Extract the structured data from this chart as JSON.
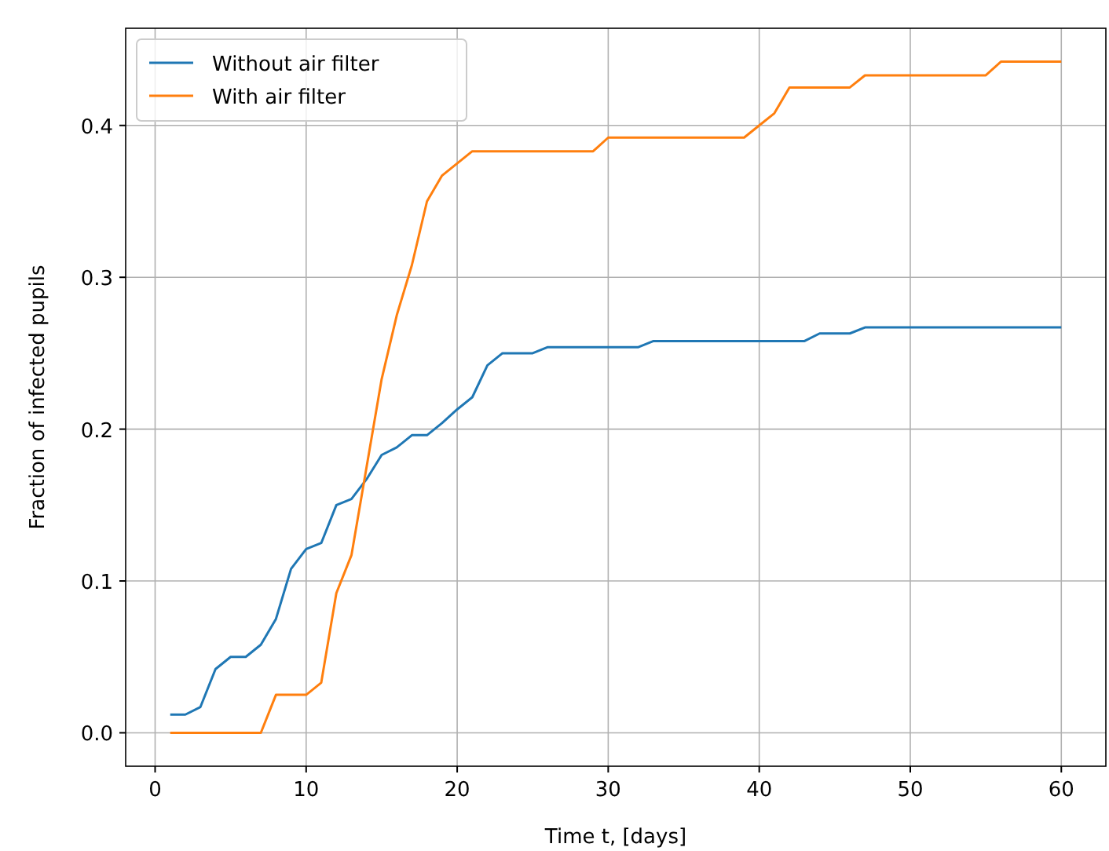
{
  "chart_data": {
    "type": "line",
    "xlabel": "Time t, [days]",
    "ylabel": "Fraction of infected pupils",
    "x": [
      1,
      2,
      3,
      4,
      5,
      6,
      7,
      8,
      9,
      10,
      11,
      12,
      13,
      14,
      15,
      16,
      17,
      18,
      19,
      20,
      21,
      22,
      23,
      24,
      25,
      26,
      27,
      28,
      29,
      30,
      31,
      32,
      33,
      34,
      35,
      36,
      37,
      38,
      39,
      40,
      41,
      42,
      43,
      44,
      45,
      46,
      47,
      48,
      49,
      50,
      51,
      52,
      53,
      54,
      55,
      56,
      57,
      58,
      59,
      60
    ],
    "series": [
      {
        "name": "Without air filter",
        "color": "#1f77b4",
        "values": [
          0.012,
          0.012,
          0.017,
          0.042,
          0.05,
          0.05,
          0.058,
          0.075,
          0.108,
          0.121,
          0.125,
          0.15,
          0.154,
          0.167,
          0.183,
          0.188,
          0.196,
          0.196,
          0.204,
          0.213,
          0.221,
          0.242,
          0.25,
          0.25,
          0.25,
          0.254,
          0.254,
          0.254,
          0.254,
          0.254,
          0.254,
          0.254,
          0.258,
          0.258,
          0.258,
          0.258,
          0.258,
          0.258,
          0.258,
          0.258,
          0.258,
          0.258,
          0.258,
          0.263,
          0.263,
          0.263,
          0.267,
          0.267,
          0.267,
          0.267,
          0.267,
          0.267,
          0.267,
          0.267,
          0.267,
          0.267,
          0.267,
          0.267,
          0.267,
          0.267
        ]
      },
      {
        "name": "With air filter",
        "color": "#ff7f0e",
        "values": [
          0,
          0,
          0,
          0,
          0,
          0,
          0,
          0.025,
          0.025,
          0.025,
          0.033,
          0.092,
          0.117,
          0.175,
          0.233,
          0.275,
          0.308,
          0.35,
          0.367,
          0.375,
          0.383,
          0.383,
          0.383,
          0.383,
          0.383,
          0.383,
          0.383,
          0.383,
          0.383,
          0.392,
          0.392,
          0.392,
          0.392,
          0.392,
          0.392,
          0.392,
          0.392,
          0.392,
          0.392,
          0.4,
          0.408,
          0.425,
          0.425,
          0.425,
          0.425,
          0.425,
          0.433,
          0.433,
          0.433,
          0.433,
          0.433,
          0.433,
          0.433,
          0.433,
          0.433,
          0.442,
          0.442,
          0.442,
          0.442,
          0.442
        ]
      }
    ],
    "xlim": [
      -1.95,
      62.95
    ],
    "ylim": [
      -0.022,
      0.464
    ],
    "xticks": [
      0,
      10,
      20,
      30,
      40,
      50,
      60
    ],
    "yticks": [
      {
        "value": 0,
        "label": "0.0"
      },
      {
        "value": 0.1,
        "label": "0.1"
      },
      {
        "value": 0.2,
        "label": "0.2"
      },
      {
        "value": 0.3,
        "label": "0.3"
      },
      {
        "value": 0.4,
        "label": "0.4"
      }
    ],
    "grid": true,
    "legend": "top left"
  }
}
